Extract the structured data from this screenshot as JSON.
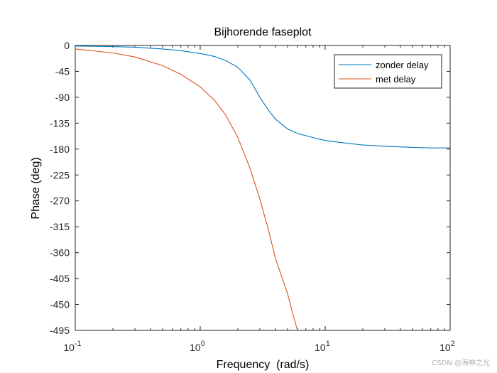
{
  "chart_data": {
    "type": "line",
    "title": "Bijhorende faseplot",
    "xlabel": "Frequency  (rad/s)",
    "ylabel": "Phase (deg)",
    "xscale": "log",
    "xlim": [
      0.1,
      100
    ],
    "ylim": [
      -495,
      0
    ],
    "x_ticks": [
      {
        "value": 0.1,
        "base": "10",
        "exp": "-1"
      },
      {
        "value": 1,
        "base": "10",
        "exp": "0"
      },
      {
        "value": 10,
        "base": "10",
        "exp": "1"
      },
      {
        "value": 100,
        "base": "10",
        "exp": "2"
      }
    ],
    "y_ticks": [
      0,
      -45,
      -90,
      -135,
      -180,
      -225,
      -270,
      -315,
      -360,
      -405,
      -450,
      -495
    ],
    "grid": false,
    "legend_position": "top-right",
    "series": [
      {
        "name": "zonder delay",
        "color": "#0072BD",
        "x": [
          0.1,
          0.2,
          0.3,
          0.5,
          0.7,
          1.0,
          1.3,
          1.6,
          2.0,
          2.5,
          3.0,
          3.5,
          4.0,
          5.0,
          6.0,
          8.0,
          10,
          15,
          20,
          30,
          50,
          70,
          100
        ],
        "y": [
          -1,
          -2,
          -3,
          -6,
          -9,
          -14,
          -19,
          -26,
          -38,
          -60,
          -90,
          -112,
          -128,
          -145,
          -153,
          -160,
          -165,
          -170,
          -173,
          -175,
          -177,
          -178,
          -178
        ]
      },
      {
        "name": "met delay",
        "color": "#D95319",
        "x": [
          0.1,
          0.2,
          0.3,
          0.5,
          0.7,
          1.0,
          1.3,
          1.6,
          2.0,
          2.5,
          3.0,
          3.5,
          4.0,
          5.0,
          5.5,
          6.0
        ],
        "y": [
          -6,
          -13,
          -20,
          -35,
          -50,
          -72,
          -95,
          -121,
          -160,
          -213,
          -267,
          -319,
          -370,
          -431,
          -466,
          -495
        ]
      }
    ],
    "watermark": "CSDN @海神之光"
  }
}
